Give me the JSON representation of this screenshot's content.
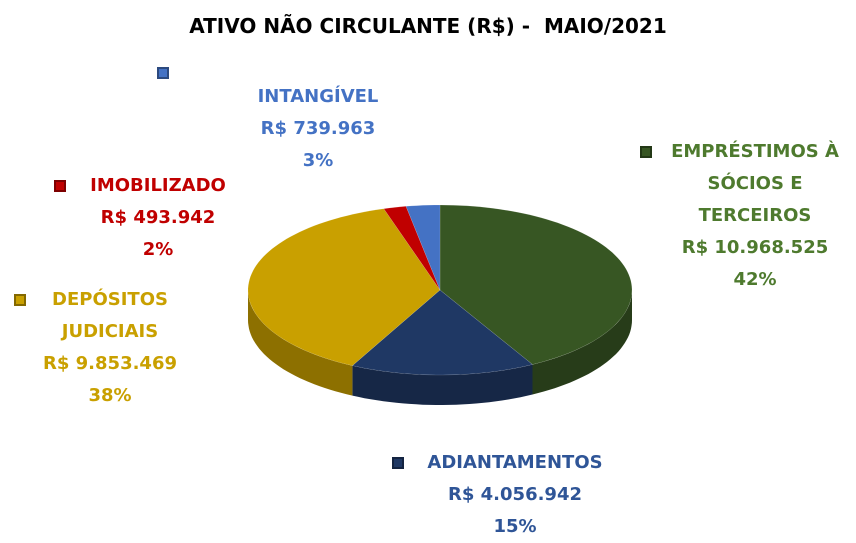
{
  "chart_data": {
    "type": "pie3d",
    "title": "ATIVO NÃO CIRCULANTE (R$) -  MAIO/2021",
    "categories": [
      "EMPRÉSTIMOS À SÓCIOS E TERCEIROS",
      "ADIANTAMENTOS",
      "DEPÓSITOS JUDICIAIS",
      "IMOBILIZADO",
      "INTANGÍVEL"
    ],
    "values": [
      10968525,
      4056942,
      9853469,
      493942,
      739963
    ],
    "value_labels": [
      "R$ 10.968.525",
      "R$ 4.056.942",
      "R$ 9.853.469",
      "R$ 493.942",
      "R$ 739.963"
    ],
    "percent_labels": [
      "42%",
      "15%",
      "38%",
      "2%",
      "3%"
    ],
    "colors": [
      "#375623",
      "#1f3864",
      "#c9a000",
      "#c00000",
      "#4472c4"
    ],
    "label_colors": [
      "#4e7a2e",
      "#2f5597",
      "#c9a000",
      "#c00000",
      "#4472c4"
    ]
  }
}
